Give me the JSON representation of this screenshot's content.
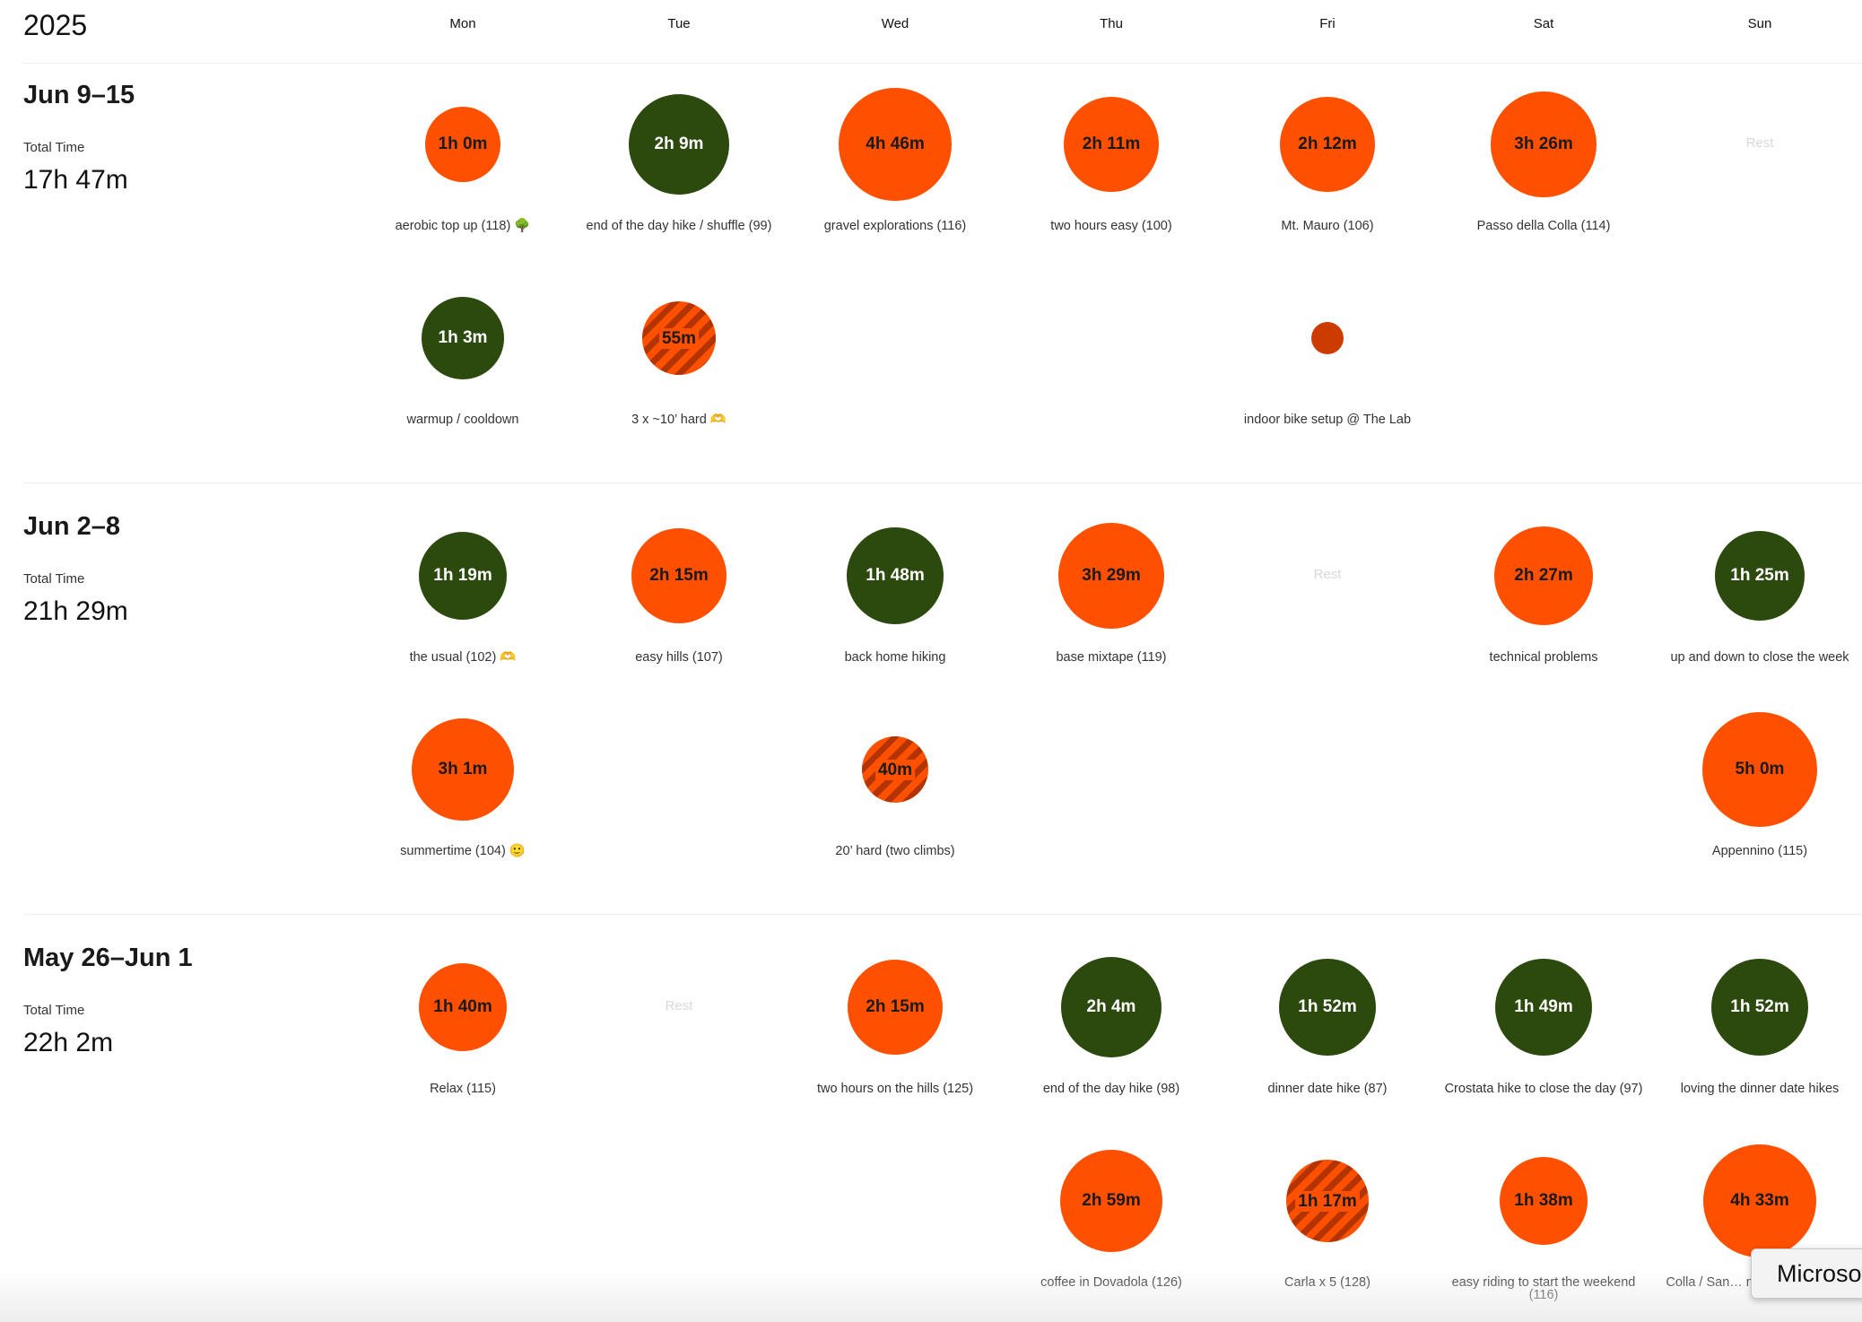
{
  "header": {
    "year": "2025",
    "days": [
      "Mon",
      "Tue",
      "Wed",
      "Thu",
      "Fri",
      "Sat",
      "Sun"
    ]
  },
  "weeks": [
    {
      "range": "Jun 9–15",
      "total_label": "Total Time",
      "total_value": "17h 47m",
      "rows": [
        [
          {
            "time": "1h 0m",
            "type": "ride",
            "label": "aerobic top up (118) 🌳"
          },
          {
            "time": "2h 9m",
            "type": "hike",
            "label": "end of the day hike / shuffle (99)"
          },
          {
            "time": "4h 46m",
            "type": "ride",
            "label": "gravel explorations (116)"
          },
          {
            "time": "2h 11m",
            "type": "ride",
            "label": "two hours easy (100)"
          },
          {
            "time": "2h 12m",
            "type": "ride",
            "label": "Mt. Mauro (106)"
          },
          {
            "time": "3h 26m",
            "type": "ride",
            "label": "Passo della Colla (114)"
          },
          {
            "rest": "Rest"
          }
        ],
        [
          {
            "time": "1h 3m",
            "type": "hike",
            "label": "warmup / cooldown"
          },
          {
            "time": "55m",
            "type": "hard",
            "label": "3 x ~10’ hard 🫶"
          },
          null,
          null,
          {
            "time": "",
            "type": "dot",
            "label": "indoor bike setup @ The Lab"
          },
          null,
          null
        ]
      ]
    },
    {
      "range": "Jun 2–8",
      "total_label": "Total Time",
      "total_value": "21h 29m",
      "rows": [
        [
          {
            "time": "1h 19m",
            "type": "hike",
            "label": "the usual (102) 🫶"
          },
          {
            "time": "2h 15m",
            "type": "ride",
            "label": "easy hills (107)"
          },
          {
            "time": "1h 48m",
            "type": "hike",
            "label": "back home hiking"
          },
          {
            "time": "3h 29m",
            "type": "ride",
            "label": "base mixtape (119)"
          },
          {
            "rest": "Rest"
          },
          {
            "time": "2h 27m",
            "type": "ride",
            "label": "technical problems"
          },
          {
            "time": "1h 25m",
            "type": "hike",
            "label": "up and down to close the week"
          }
        ],
        [
          {
            "time": "3h 1m",
            "type": "ride",
            "label": "summertime (104) 🙂"
          },
          null,
          {
            "time": "40m",
            "type": "hard",
            "label": "20’ hard (two climbs)"
          },
          null,
          null,
          null,
          {
            "time": "5h 0m",
            "type": "ride",
            "label": "Appennino (115)"
          }
        ]
      ]
    },
    {
      "range": "May 26–Jun 1",
      "total_label": "Total Time",
      "total_value": "22h 2m",
      "rows": [
        [
          {
            "time": "1h 40m",
            "type": "ride",
            "label": "Relax (115)"
          },
          {
            "rest": "Rest"
          },
          {
            "time": "2h 15m",
            "type": "ride",
            "label": "two hours on the hills (125)"
          },
          {
            "time": "2h 4m",
            "type": "hike",
            "label": "end of the day hike (98)"
          },
          {
            "time": "1h 52m",
            "type": "hike",
            "label": "dinner date hike (87)"
          },
          {
            "time": "1h 49m",
            "type": "hike",
            "label": "Crostata hike to close the day (97)"
          },
          {
            "time": "1h 52m",
            "type": "hike",
            "label": "loving the dinner date hikes"
          }
        ],
        [
          null,
          null,
          null,
          {
            "time": "2h 59m",
            "type": "ride",
            "label": "coffee in Dovadola (126)"
          },
          {
            "time": "1h 17m",
            "type": "hard",
            "label": "Carla x 5 (128)"
          },
          {
            "time": "1h 38m",
            "type": "ride",
            "label": "easy riding to start the weekend (116)"
          },
          {
            "time": "4h 33m",
            "type": "ride",
            "label": "Colla / San… maintenance (118)"
          }
        ]
      ]
    }
  ],
  "toast": {
    "text": "Microsoft"
  }
}
